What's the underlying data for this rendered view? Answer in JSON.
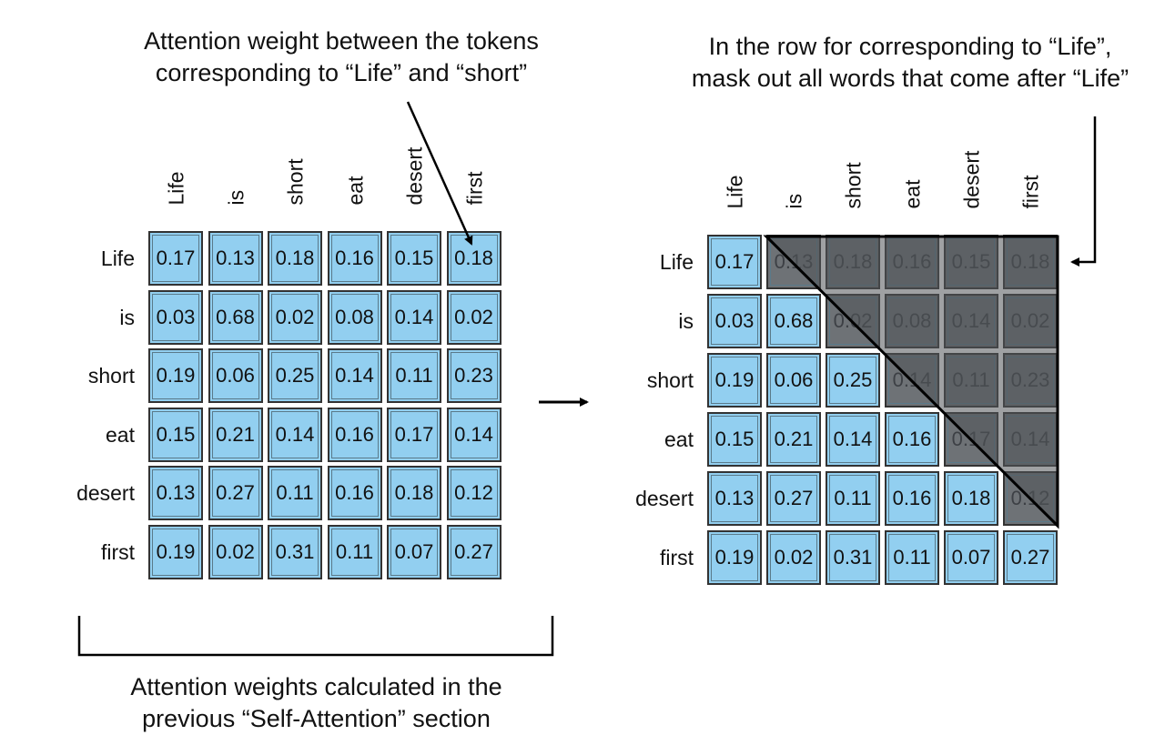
{
  "annotations": {
    "top_left": [
      "Attention weight between the tokens",
      "corresponding to “Life” and “short”"
    ],
    "top_right": [
      "In the row for corresponding to “Life”,",
      "mask out all words that come after “Life”"
    ],
    "bottom": [
      "Attention weights calculated in the",
      "previous “Self-Attention” section"
    ]
  },
  "tokens": [
    "Life",
    "is",
    "short",
    "eat",
    "desert",
    "first"
  ],
  "weights": [
    [
      "0.17",
      "0.13",
      "0.18",
      "0.16",
      "0.15",
      "0.18"
    ],
    [
      "0.03",
      "0.68",
      "0.02",
      "0.08",
      "0.14",
      "0.02"
    ],
    [
      "0.19",
      "0.06",
      "0.25",
      "0.14",
      "0.11",
      "0.23"
    ],
    [
      "0.15",
      "0.21",
      "0.14",
      "0.16",
      "0.17",
      "0.14"
    ],
    [
      "0.13",
      "0.27",
      "0.11",
      "0.16",
      "0.18",
      "0.12"
    ],
    [
      "0.19",
      "0.02",
      "0.31",
      "0.11",
      "0.07",
      "0.27"
    ]
  ],
  "colors": {
    "cell": "#92cff0",
    "border": "#333333",
    "mask": "#6e7276"
  }
}
